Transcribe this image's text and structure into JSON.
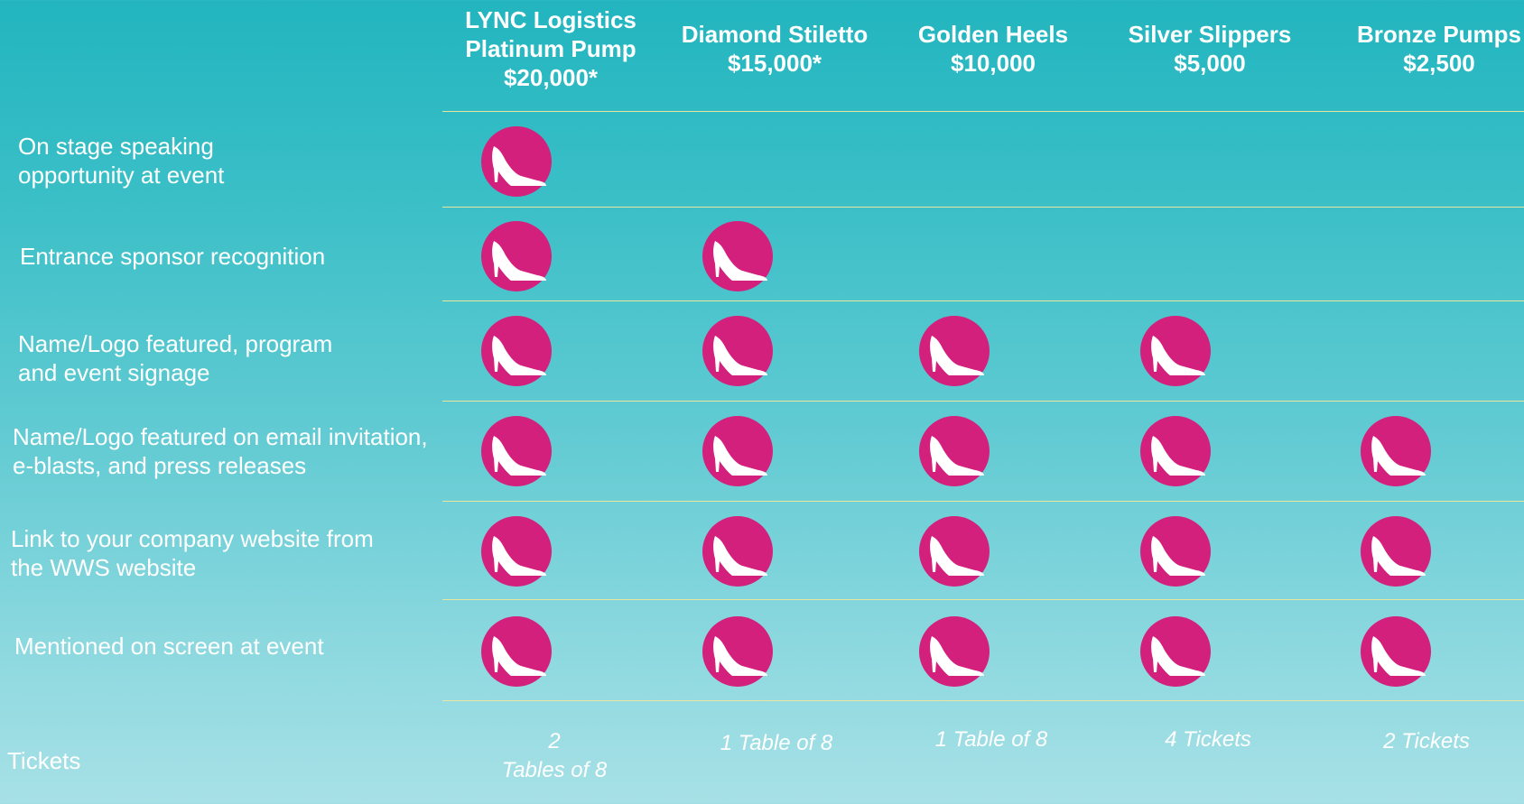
{
  "tiers": [
    {
      "name": "LYNC Logistics\nPlatinum Pump",
      "price": "$20,000*"
    },
    {
      "name": "Diamond Stiletto",
      "price": "$15,000*"
    },
    {
      "name": "Golden Heels",
      "price": "$10,000"
    },
    {
      "name": "Silver Slippers",
      "price": "$5,000"
    },
    {
      "name": "Bronze Pumps",
      "price": "$2,500"
    }
  ],
  "benefits": [
    {
      "label": "On stage speaking\nopportunity at event",
      "included": [
        true,
        false,
        false,
        false,
        false
      ]
    },
    {
      "label": "Entrance sponsor recognition",
      "included": [
        true,
        true,
        false,
        false,
        false
      ]
    },
    {
      "label": "Name/Logo featured, program\nand event signage",
      "included": [
        true,
        true,
        true,
        true,
        false
      ]
    },
    {
      "label": "Name/Logo featured on email invitation,\ne-blasts, and press releases",
      "included": [
        true,
        true,
        true,
        true,
        true
      ]
    },
    {
      "label": "Link to your company website from\nthe WWS website",
      "included": [
        true,
        true,
        true,
        true,
        true
      ]
    },
    {
      "label": "Mentioned on screen at event",
      "included": [
        true,
        true,
        true,
        true,
        true
      ]
    }
  ],
  "tickets": {
    "label": "Tickets",
    "values": [
      "2\nTables of 8",
      "1  Table of 8",
      "1 Table of 8",
      "4 Tickets",
      "2  Tickets"
    ]
  },
  "colors": {
    "badge": "#d4207d",
    "rule": "#e9e6a0"
  },
  "icon": "high-heel-shoe-icon"
}
